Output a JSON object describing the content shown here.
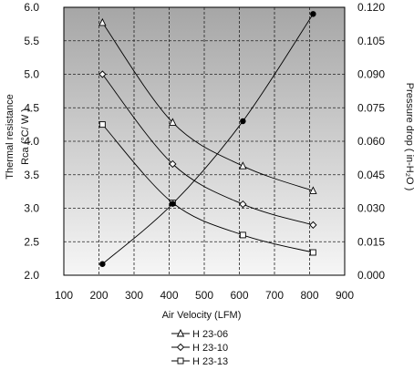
{
  "chart_data": {
    "type": "line",
    "title": "",
    "xlabel": "Air Velocity (LFM)",
    "ylabel_left_line1": "Thermal resistance",
    "ylabel_left_line2": "Rca (°C/ W )",
    "ylabel_right": "Pressure drop ( in-H₂O )",
    "xlim": [
      100,
      900
    ],
    "ylim_left": [
      2.0,
      6.0
    ],
    "ylim_right": [
      0.0,
      0.12
    ],
    "x_ticks": [
      "100",
      "200",
      "300",
      "400",
      "500",
      "600",
      "700",
      "800",
      "900"
    ],
    "y_left_ticks": [
      "2.0",
      "2.5",
      "3.0",
      "3.5",
      "4.0",
      "4.5",
      "5.0",
      "5.5",
      "6.0"
    ],
    "y_right_ticks": [
      "0.000",
      "0.015",
      "0.030",
      "0.045",
      "0.060",
      "0.075",
      "0.090",
      "0.105",
      "0.120"
    ],
    "grid": true,
    "background": "gradient gray",
    "legend_position": "bottom-center",
    "series": [
      {
        "name": "H 23-06",
        "axis": "left",
        "marker": "triangle",
        "x": [
          210,
          410,
          610,
          810
        ],
        "values": [
          5.77,
          4.28,
          3.63,
          3.26
        ]
      },
      {
        "name": "H 23-10",
        "axis": "left",
        "marker": "diamond",
        "x": [
          210,
          410,
          610,
          810
        ],
        "values": [
          5.0,
          3.66,
          3.06,
          2.75
        ]
      },
      {
        "name": "H 23-13",
        "axis": "left",
        "marker": "square",
        "x": [
          210,
          410,
          610,
          810
        ],
        "values": [
          4.25,
          3.08,
          2.6,
          2.34
        ]
      },
      {
        "axis": "right",
        "marker": "circle",
        "x": [
          210,
          410,
          610,
          810
        ],
        "values": [
          0.005,
          0.032,
          0.069,
          0.117
        ]
      }
    ]
  }
}
